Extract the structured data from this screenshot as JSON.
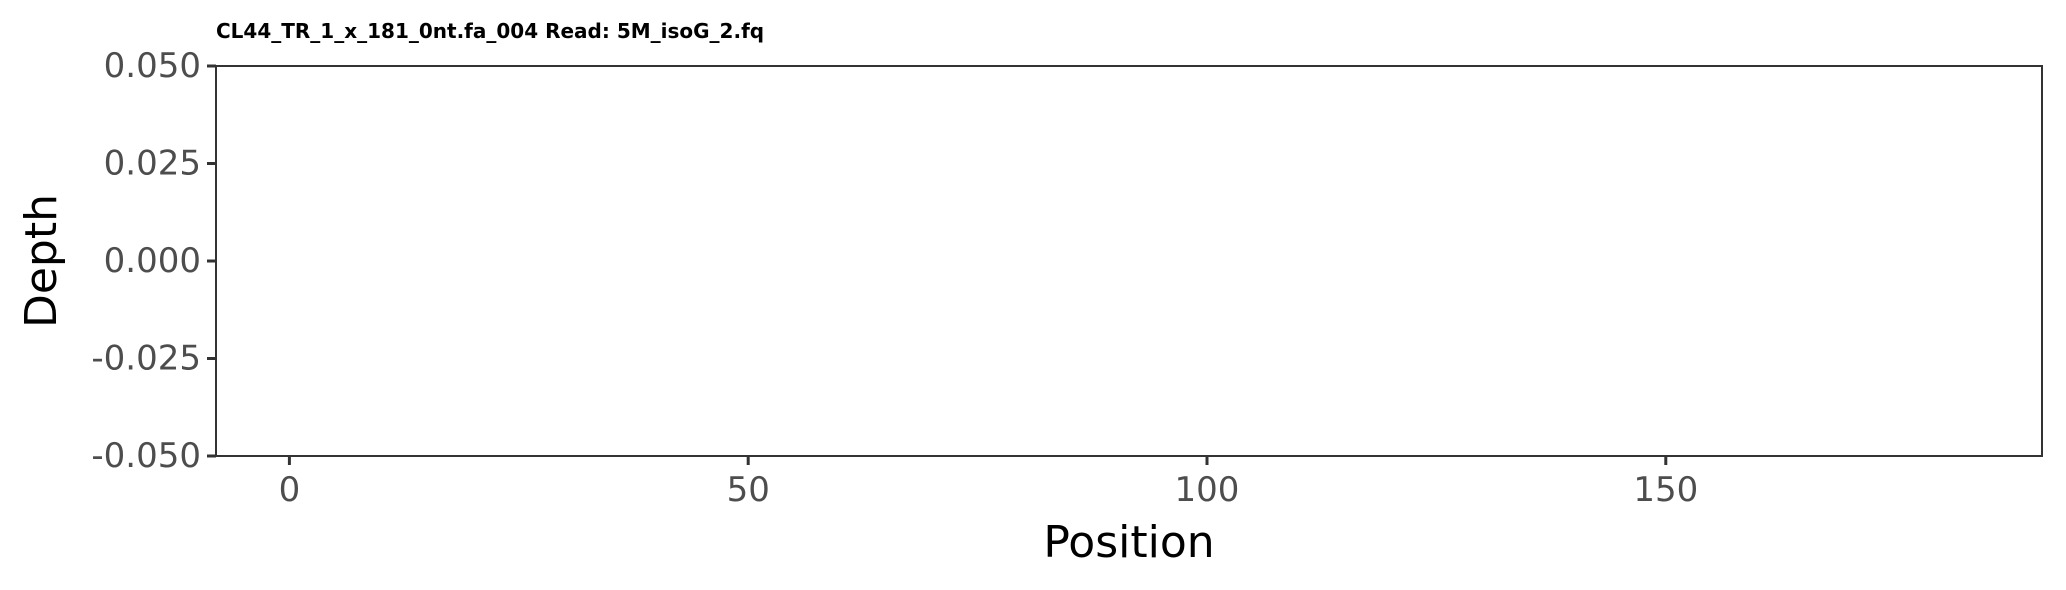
{
  "chart_data": {
    "type": "line",
    "title": "CL44_TR_1_x_181_0nt.fa_004 Read: 5M_isoG_2.fq",
    "xlabel": "Position",
    "ylabel": "Depth",
    "xlim": [
      -8,
      191
    ],
    "ylim": [
      -0.05,
      0.05
    ],
    "x_ticks": [
      0,
      50,
      100,
      150
    ],
    "x_tick_labels": [
      "0",
      "50",
      "100",
      "150"
    ],
    "y_ticks": [
      0.05,
      0.025,
      0,
      -0.025,
      -0.05
    ],
    "y_tick_labels": [
      "0.050",
      "0.025",
      "0.000",
      "-0.025",
      "-0.050"
    ],
    "series": [],
    "grid": false,
    "colors": {
      "panel_border": "#333333",
      "tick": "#333333",
      "tick_label": "#4d4d4d",
      "background": "#ffffff"
    }
  }
}
